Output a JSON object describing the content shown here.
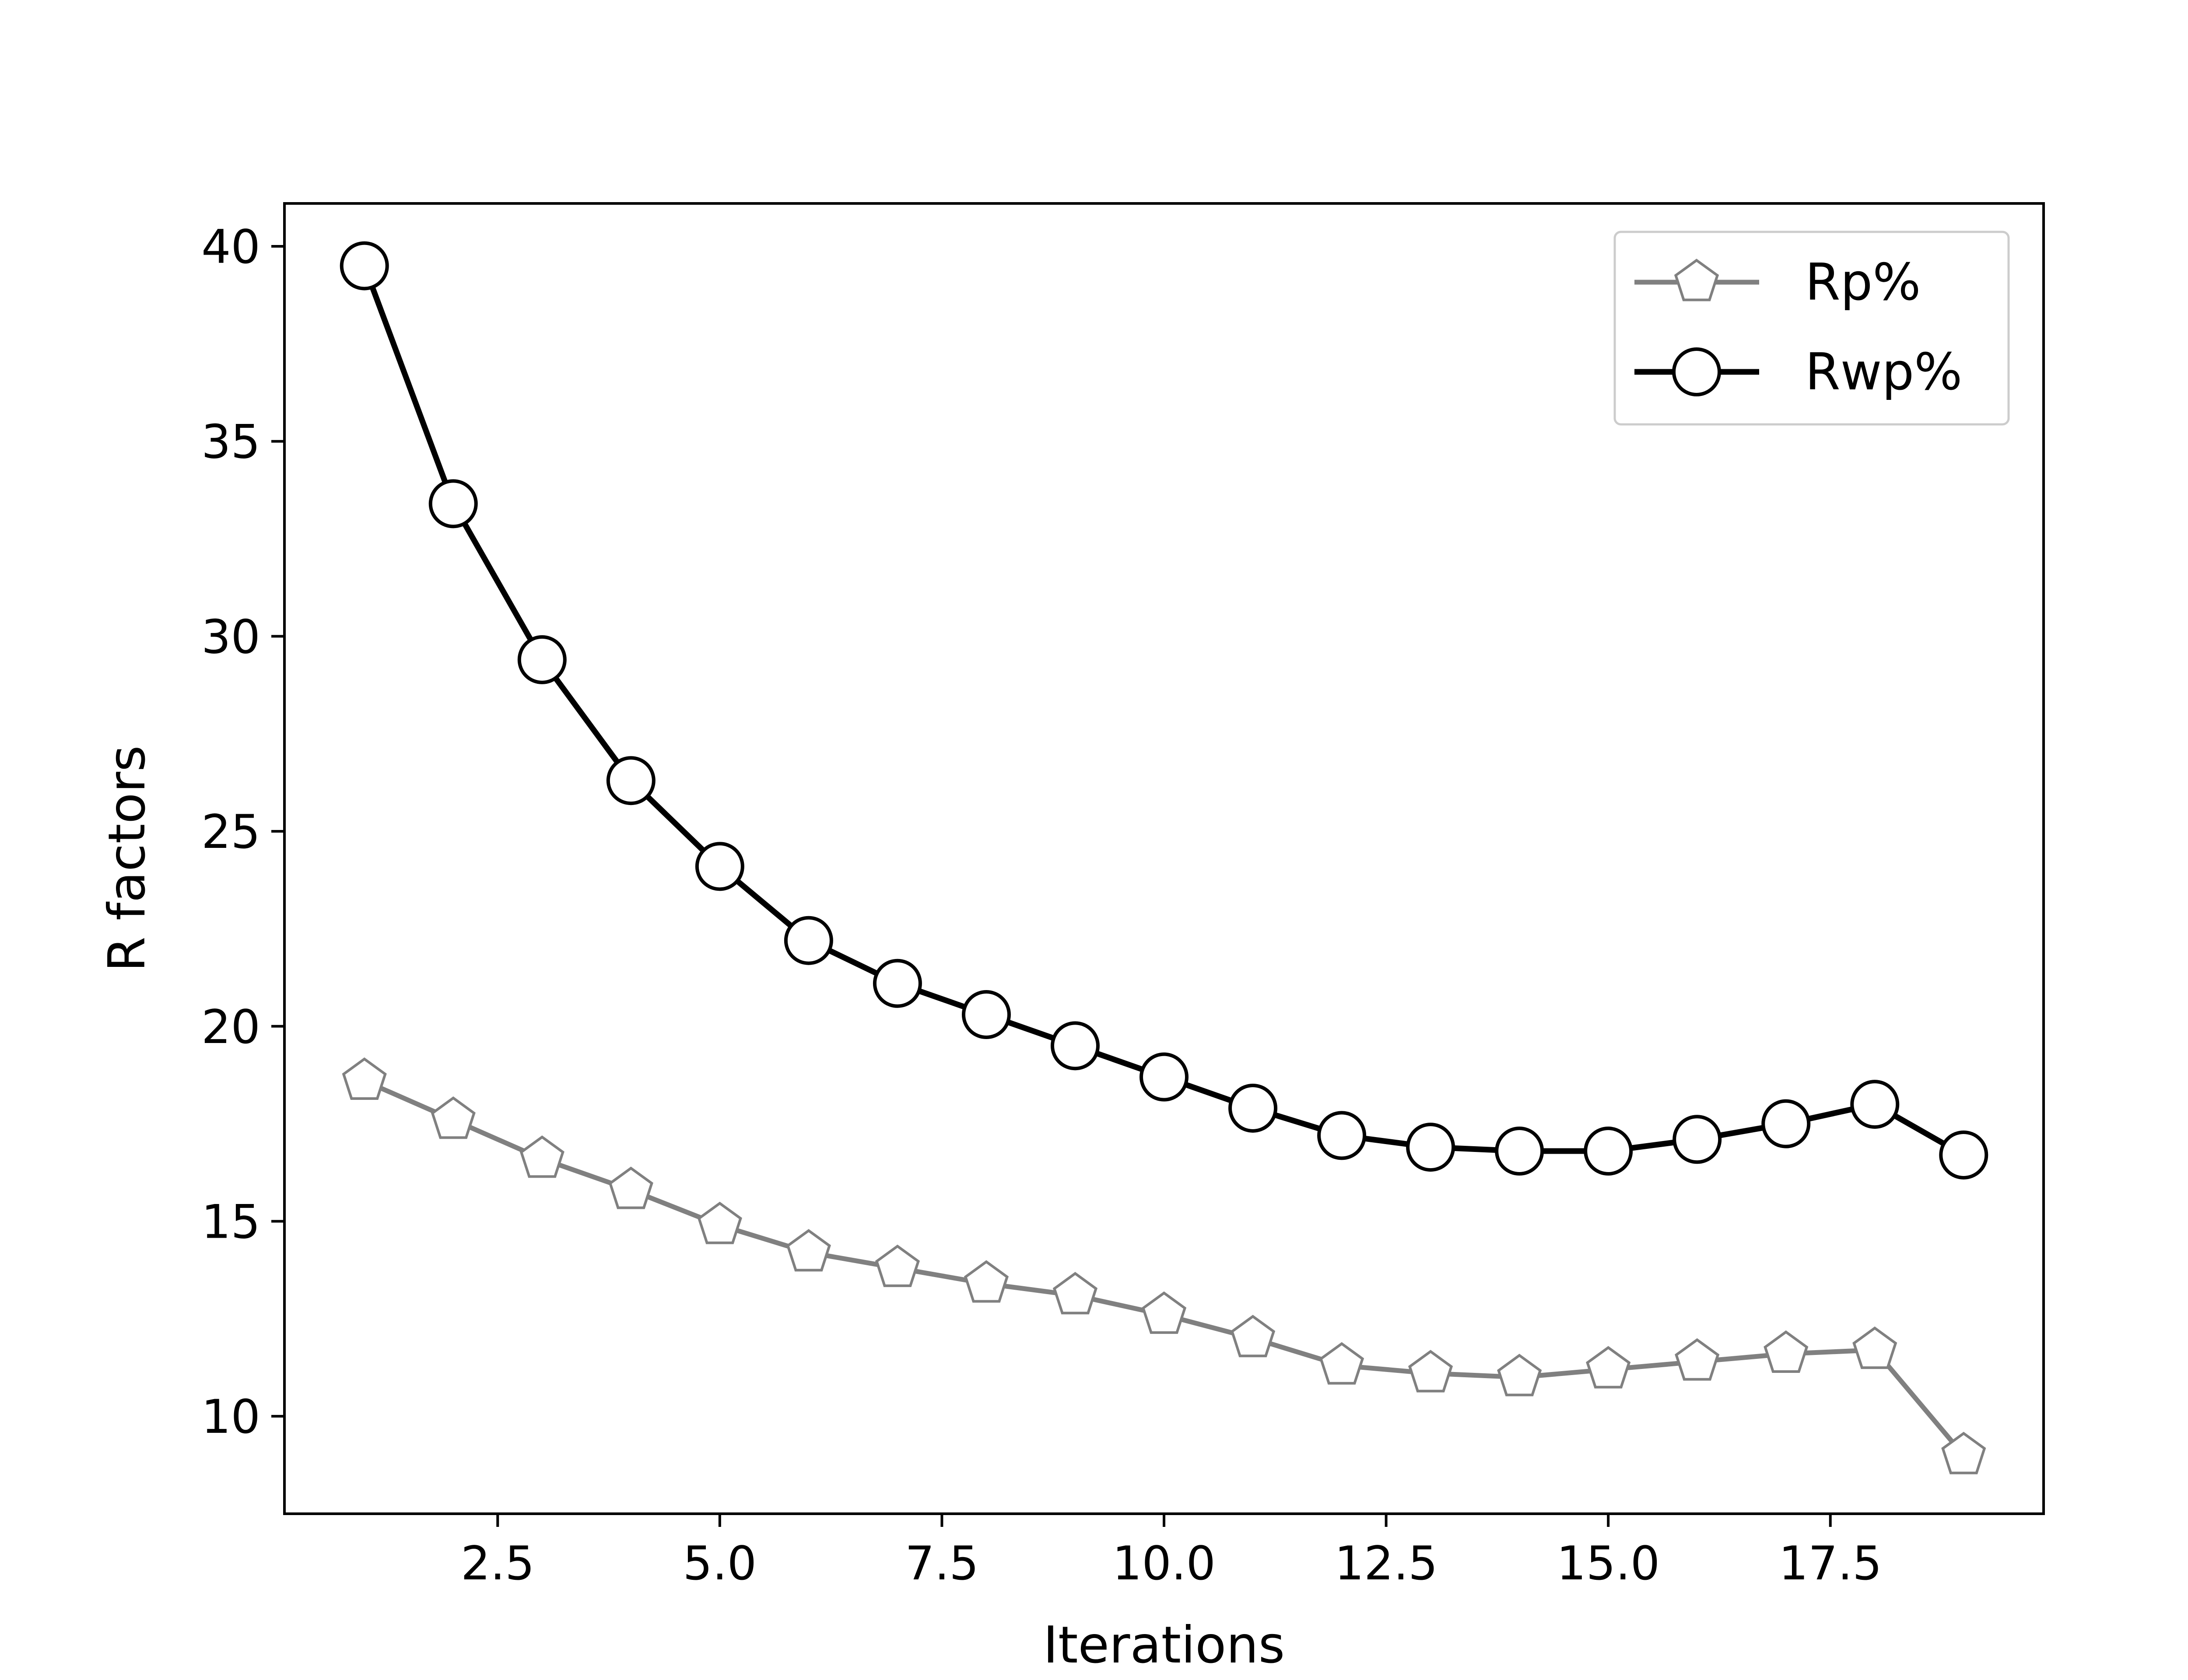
{
  "chart_data": {
    "type": "line",
    "title": "",
    "xlabel": "Iterations",
    "ylabel": "R factors",
    "xlim": [
      0.1,
      19.9
    ],
    "ylim": [
      7.5,
      41.1
    ],
    "x_ticks": [
      "2.5",
      "5.0",
      "7.5",
      "10.0",
      "12.5",
      "15.0",
      "17.5"
    ],
    "y_ticks": [
      "10",
      "15",
      "20",
      "25",
      "30",
      "35",
      "40"
    ],
    "grid": false,
    "legend_position": "top-right",
    "x": [
      1,
      2,
      3,
      4,
      5,
      6,
      7,
      8,
      9,
      10,
      11,
      12,
      13,
      14,
      15,
      16,
      17,
      18,
      19
    ],
    "series": [
      {
        "name": "Rp%",
        "color": "#808080",
        "marker": "pentagon",
        "values": [
          18.6,
          17.6,
          16.6,
          15.8,
          14.9,
          14.2,
          13.8,
          13.4,
          13.1,
          12.6,
          12.0,
          11.3,
          11.1,
          11.0,
          11.2,
          11.4,
          11.6,
          11.7,
          9.0
        ]
      },
      {
        "name": "Rwp%",
        "color": "#000000",
        "marker": "circle",
        "values": [
          39.5,
          33.4,
          29.4,
          26.3,
          24.1,
          22.2,
          21.1,
          20.3,
          19.5,
          18.7,
          17.9,
          17.2,
          16.9,
          16.8,
          16.8,
          17.1,
          17.5,
          18.0,
          16.7
        ]
      }
    ]
  }
}
